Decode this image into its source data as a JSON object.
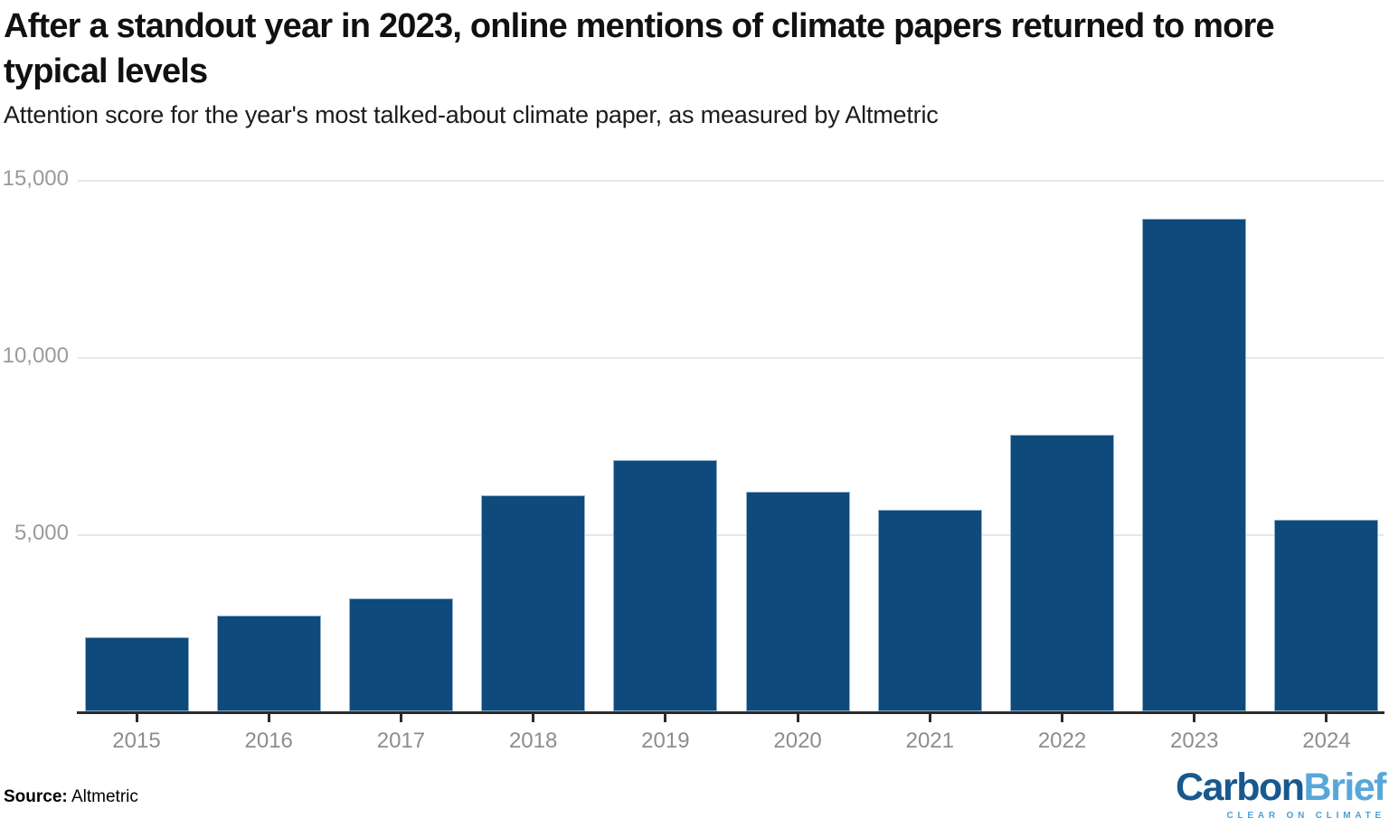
{
  "header": {
    "title": "After a standout year in 2023, online mentions of climate papers returned to more typical levels",
    "subtitle": "Attention score for the year's most talked-about climate paper, as measured by Altmetric"
  },
  "chart_data": {
    "type": "bar",
    "categories": [
      "2015",
      "2016",
      "2017",
      "2018",
      "2019",
      "2020",
      "2021",
      "2022",
      "2023",
      "2024"
    ],
    "values": [
      2100,
      2700,
      3200,
      6100,
      7100,
      6200,
      5700,
      7800,
      13900,
      5400
    ],
    "title": "After a standout year in 2023, online mentions of climate papers returned to more typical levels",
    "subtitle": "Attention score for the year's most talked-about climate paper, as measured by Altmetric",
    "xlabel": "",
    "ylabel": "",
    "ylim": [
      0,
      15000
    ],
    "yticks": [
      {
        "value": 5000,
        "label": "5,000"
      },
      {
        "value": 10000,
        "label": "10,000"
      },
      {
        "value": 15000,
        "label": "15,000"
      }
    ],
    "grid": true,
    "legend": "none",
    "bar_color": "#0e4a7b",
    "gridline_color": "#e7e7e7",
    "axis_color": "#2b2b2b",
    "tick_label_color": "#8d8d8d"
  },
  "footer": {
    "source_label": "Source:",
    "source_value": "Altmetric",
    "logo": {
      "part1": "Carbon",
      "part2": "Brief",
      "tagline": "CLEAR ON CLIMATE",
      "part1_color": "#17598f",
      "part2_color": "#57a7d9",
      "tagline_color": "#4da0d2"
    }
  }
}
